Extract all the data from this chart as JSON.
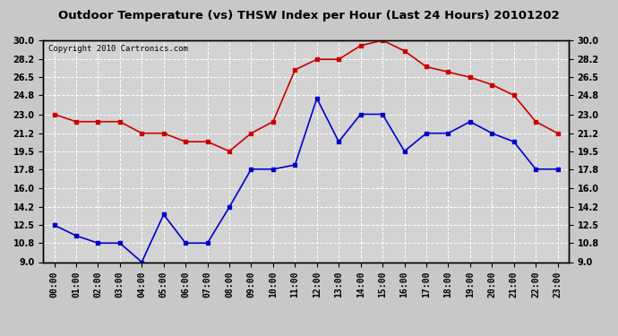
{
  "title": "Outdoor Temperature (vs) THSW Index per Hour (Last 24 Hours) 20101202",
  "copyright": "Copyright 2010 Cartronics.com",
  "hours": [
    "00:00",
    "01:00",
    "02:00",
    "03:00",
    "04:00",
    "05:00",
    "06:00",
    "07:00",
    "08:00",
    "09:00",
    "10:00",
    "11:00",
    "12:00",
    "13:00",
    "14:00",
    "15:00",
    "16:00",
    "17:00",
    "18:00",
    "19:00",
    "20:00",
    "21:00",
    "22:00",
    "23:00"
  ],
  "outdoor_temp": [
    12.5,
    11.5,
    10.8,
    10.8,
    9.0,
    13.5,
    10.8,
    10.8,
    14.2,
    17.8,
    17.8,
    18.2,
    24.5,
    20.4,
    23.0,
    23.0,
    19.5,
    21.2,
    21.2,
    22.3,
    21.2,
    20.4,
    17.8,
    17.8
  ],
  "thsw_index": [
    23.0,
    22.3,
    22.3,
    22.3,
    21.2,
    21.2,
    20.4,
    20.4,
    19.5,
    21.2,
    22.3,
    27.2,
    28.2,
    28.2,
    29.5,
    30.0,
    29.0,
    27.5,
    27.0,
    26.5,
    25.8,
    24.8,
    22.3,
    21.2
  ],
  "ylim": [
    9.0,
    30.0
  ],
  "yticks": [
    9.0,
    10.8,
    12.5,
    14.2,
    16.0,
    17.8,
    19.5,
    21.2,
    23.0,
    24.8,
    26.5,
    28.2,
    30.0
  ],
  "temp_color": "#0000cc",
  "thsw_color": "#cc0000",
  "bg_color": "#c8c8c8",
  "plot_bg_color": "#d3d3d3",
  "grid_color": "#ffffff",
  "marker": "s",
  "marker_size": 2.5,
  "line_width": 1.2,
  "title_fontsize": 9.5,
  "tick_fontsize": 7,
  "copyright_fontsize": 6.5
}
